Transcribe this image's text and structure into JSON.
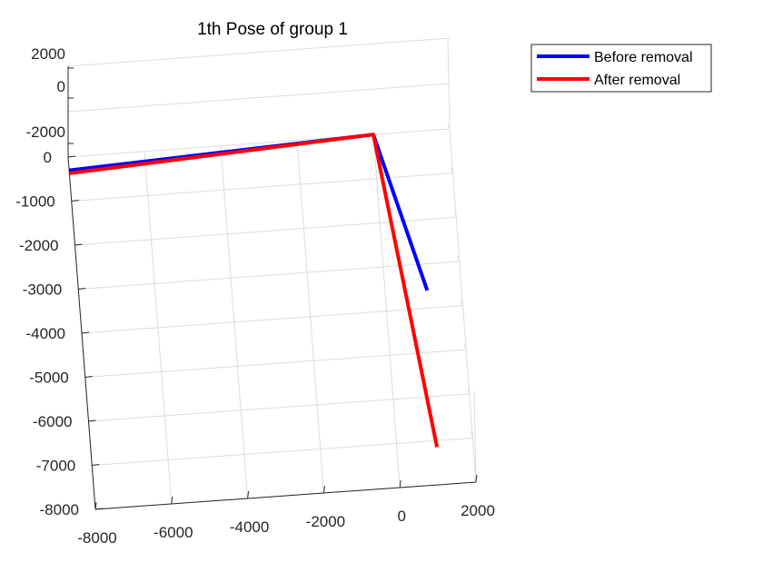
{
  "chart_data": {
    "type": "line",
    "title": "1th Pose of group 1",
    "xlabel": "",
    "ylabel": "",
    "zlabel": "",
    "view": "3d",
    "grid": true,
    "legend_position": "top-right",
    "x_ticks": [
      "-8000",
      "-6000",
      "-4000",
      "-2000",
      "0",
      "2000"
    ],
    "y_ticks": [
      "0",
      "-1000",
      "-2000",
      "-3000",
      "-4000",
      "-5000",
      "-6000",
      "-7000",
      "-8000"
    ],
    "z_ticks": [
      "2000",
      "0",
      "-2000"
    ],
    "xlim": [
      -8000,
      2000
    ],
    "ylim": [
      -8000,
      0
    ],
    "series": [
      {
        "name": "Before removal",
        "color": "#0000FF",
        "points": [
          {
            "x": -8000,
            "y": -300
          },
          {
            "x": 0,
            "y": 0
          },
          {
            "x": 1100,
            "y": -3600
          }
        ]
      },
      {
        "name": "After removal",
        "color": "#FF0000",
        "points": [
          {
            "x": -8000,
            "y": -370
          },
          {
            "x": 0,
            "y": 0
          },
          {
            "x": 1050,
            "y": -7150
          }
        ]
      }
    ]
  }
}
